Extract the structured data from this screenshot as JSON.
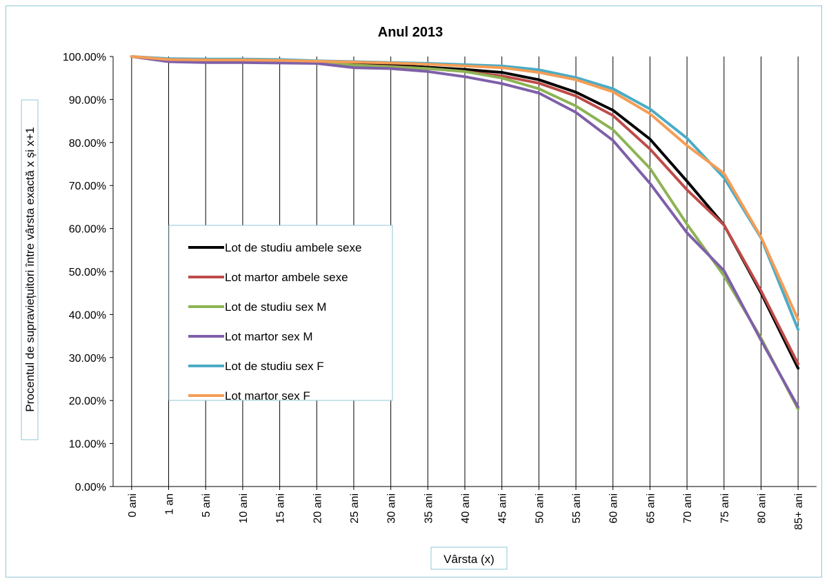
{
  "chart_data": {
    "type": "line",
    "title": "Anul 2013",
    "xlabel": "Vârsta (x)",
    "ylabel": "Procentul de supraviețuitori între vârsta exactă x și x+1",
    "ylim": [
      0,
      100
    ],
    "y_ticks": [
      "0.00%",
      "10.00%",
      "20.00%",
      "30.00%",
      "40.00%",
      "50.00%",
      "60.00%",
      "70.00%",
      "80.00%",
      "90.00%",
      "100.00%"
    ],
    "categories": [
      "0 ani",
      "1 an",
      "5 ani",
      "10 ani",
      "15 ani",
      "20 ani",
      "25 ani",
      "30 ani",
      "35 ani",
      "40 ani",
      "45 ani",
      "50 ani",
      "55 ani",
      "60 ani",
      "65 ani",
      "70 ani",
      "75 ani",
      "80 ani",
      "85+ ani"
    ],
    "grid": "vertical",
    "legend_position": "left-center",
    "series": [
      {
        "name": "Lot de studiu ambele sexe",
        "color": "#000000",
        "values": [
          100,
          99.1,
          98.9,
          98.9,
          98.8,
          98.6,
          98.3,
          98.0,
          97.5,
          97.0,
          96.3,
          94.6,
          91.7,
          87.5,
          80.8,
          71.0,
          60.8,
          45.0,
          27.5
        ]
      },
      {
        "name": "Lot martor ambele sexe",
        "color": "#be4b48",
        "values": [
          100,
          99.0,
          98.8,
          98.8,
          98.7,
          98.5,
          98.0,
          97.7,
          97.2,
          96.5,
          95.5,
          93.8,
          90.8,
          86.3,
          78.5,
          69.0,
          60.8,
          45.5,
          28.5
        ]
      },
      {
        "name": "Lot de studiu sex M",
        "color": "#8db355",
        "values": [
          100,
          99.1,
          98.9,
          98.9,
          98.8,
          98.6,
          98.0,
          97.6,
          97.2,
          96.5,
          95.0,
          92.5,
          88.5,
          83.0,
          74.0,
          61.0,
          49.0,
          34.5,
          18.0
        ]
      },
      {
        "name": "Lot martor sex M",
        "color": "#7f5fa9",
        "values": [
          100,
          98.8,
          98.6,
          98.6,
          98.5,
          98.4,
          97.4,
          97.2,
          96.5,
          95.3,
          93.7,
          91.5,
          87.0,
          80.5,
          70.5,
          59.0,
          50.2,
          34.0,
          18.5
        ]
      },
      {
        "name": "Lot de studiu sex F",
        "color": "#4aacc6",
        "values": [
          100,
          99.5,
          99.4,
          99.4,
          99.3,
          99.0,
          98.8,
          98.6,
          98.4,
          98.1,
          97.8,
          96.9,
          95.1,
          92.5,
          87.8,
          81.0,
          71.8,
          57.8,
          36.5
        ]
      },
      {
        "name": "Lot martor sex F",
        "color": "#f59d56",
        "values": [
          100,
          99.3,
          99.2,
          99.2,
          99.1,
          98.9,
          98.7,
          98.5,
          98.2,
          97.8,
          97.4,
          96.3,
          94.6,
          91.8,
          86.7,
          79.3,
          72.8,
          58.0,
          38.8
        ]
      }
    ]
  }
}
